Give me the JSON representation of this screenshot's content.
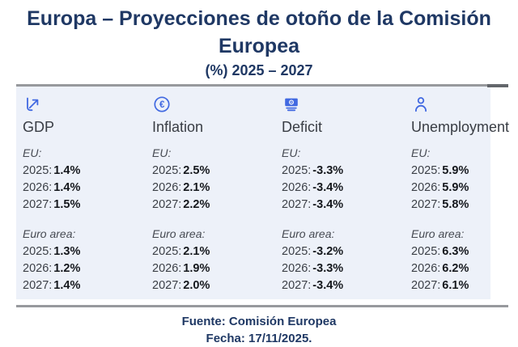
{
  "header": {
    "title": "Europa – Proyecciones de otoño de la Comisión Europea",
    "subtitle": "(%) 2025 – 2027"
  },
  "table": {
    "columns": [
      {
        "icon": "growth-arrow-icon",
        "label": "GDP",
        "eu_label": "EU:",
        "eu": [
          {
            "year": "2025:",
            "value": "1.4%"
          },
          {
            "year": "2026:",
            "value": "1.4%"
          },
          {
            "year": "2027:",
            "value": "1.5%"
          }
        ],
        "euro_area_label": "Euro area:",
        "euro_area": [
          {
            "year": "2025:",
            "value": "1.3%"
          },
          {
            "year": "2026:",
            "value": "1.2%"
          },
          {
            "year": "2027:",
            "value": "1.4%"
          }
        ]
      },
      {
        "icon": "euro-circle-icon",
        "label": "Inflation",
        "eu_label": "EU:",
        "eu": [
          {
            "year": "2025:",
            "value": "2.5%"
          },
          {
            "year": "2026:",
            "value": "2.1%"
          },
          {
            "year": "2027:",
            "value": "2.2%"
          }
        ],
        "euro_area_label": "Euro area:",
        "euro_area": [
          {
            "year": "2025:",
            "value": "2.1%"
          },
          {
            "year": "2026:",
            "value": "1.9%"
          },
          {
            "year": "2027:",
            "value": "2.0%"
          }
        ]
      },
      {
        "icon": "banknote-icon",
        "label": "Deficit",
        "eu_label": "EU:",
        "eu": [
          {
            "year": "2025:",
            "value": "-3.3%"
          },
          {
            "year": "2026:",
            "value": "-3.4%"
          },
          {
            "year": "2027:",
            "value": "-3.4%"
          }
        ],
        "euro_area_label": "Euro area:",
        "euro_area": [
          {
            "year": "2025:",
            "value": "-3.2%"
          },
          {
            "year": "2026:",
            "value": "-3.3%"
          },
          {
            "year": "2027:",
            "value": "-3.4%"
          }
        ]
      },
      {
        "icon": "person-icon",
        "label": "Unemployment",
        "eu_label": "EU:",
        "eu": [
          {
            "year": "2025:",
            "value": "5.9%"
          },
          {
            "year": "2026:",
            "value": "5.9%"
          },
          {
            "year": "2027:",
            "value": "5.8%"
          }
        ],
        "euro_area_label": "Euro area:",
        "euro_area": [
          {
            "year": "2025:",
            "value": "6.3%"
          },
          {
            "year": "2026:",
            "value": "6.2%"
          },
          {
            "year": "2027:",
            "value": "6.1%"
          }
        ]
      }
    ]
  },
  "footer": {
    "source": "Fuente: Comisión Europea",
    "date": "Fecha: 17/11/2025."
  },
  "colors": {
    "title_navy": "#1f3864",
    "icon_blue": "#4169e1",
    "panel_bg": "#edf1f9",
    "border_gray": "#97999d"
  },
  "chart_data": {
    "type": "table",
    "title": "Europa – Proyecciones de otoño de la Comisión Europea",
    "subtitle": "(%) 2025 – 2027",
    "unit": "%",
    "columns": [
      "GDP",
      "Inflation",
      "Deficit",
      "Unemployment"
    ],
    "groups": [
      "EU",
      "Euro area"
    ],
    "years": [
      2025,
      2026,
      2027
    ],
    "eu": {
      "2025": [
        1.4,
        2.5,
        -3.3,
        5.9
      ],
      "2026": [
        1.4,
        2.1,
        -3.4,
        5.9
      ],
      "2027": [
        1.5,
        2.2,
        -3.4,
        5.8
      ]
    },
    "euro_area": {
      "2025": [
        1.3,
        2.1,
        -3.2,
        6.3
      ],
      "2026": [
        1.2,
        1.9,
        -3.3,
        6.2
      ],
      "2027": [
        1.4,
        2.0,
        -3.4,
        6.1
      ]
    },
    "source": "Fuente: Comisión Europea",
    "date": "Fecha: 17/11/2025."
  }
}
